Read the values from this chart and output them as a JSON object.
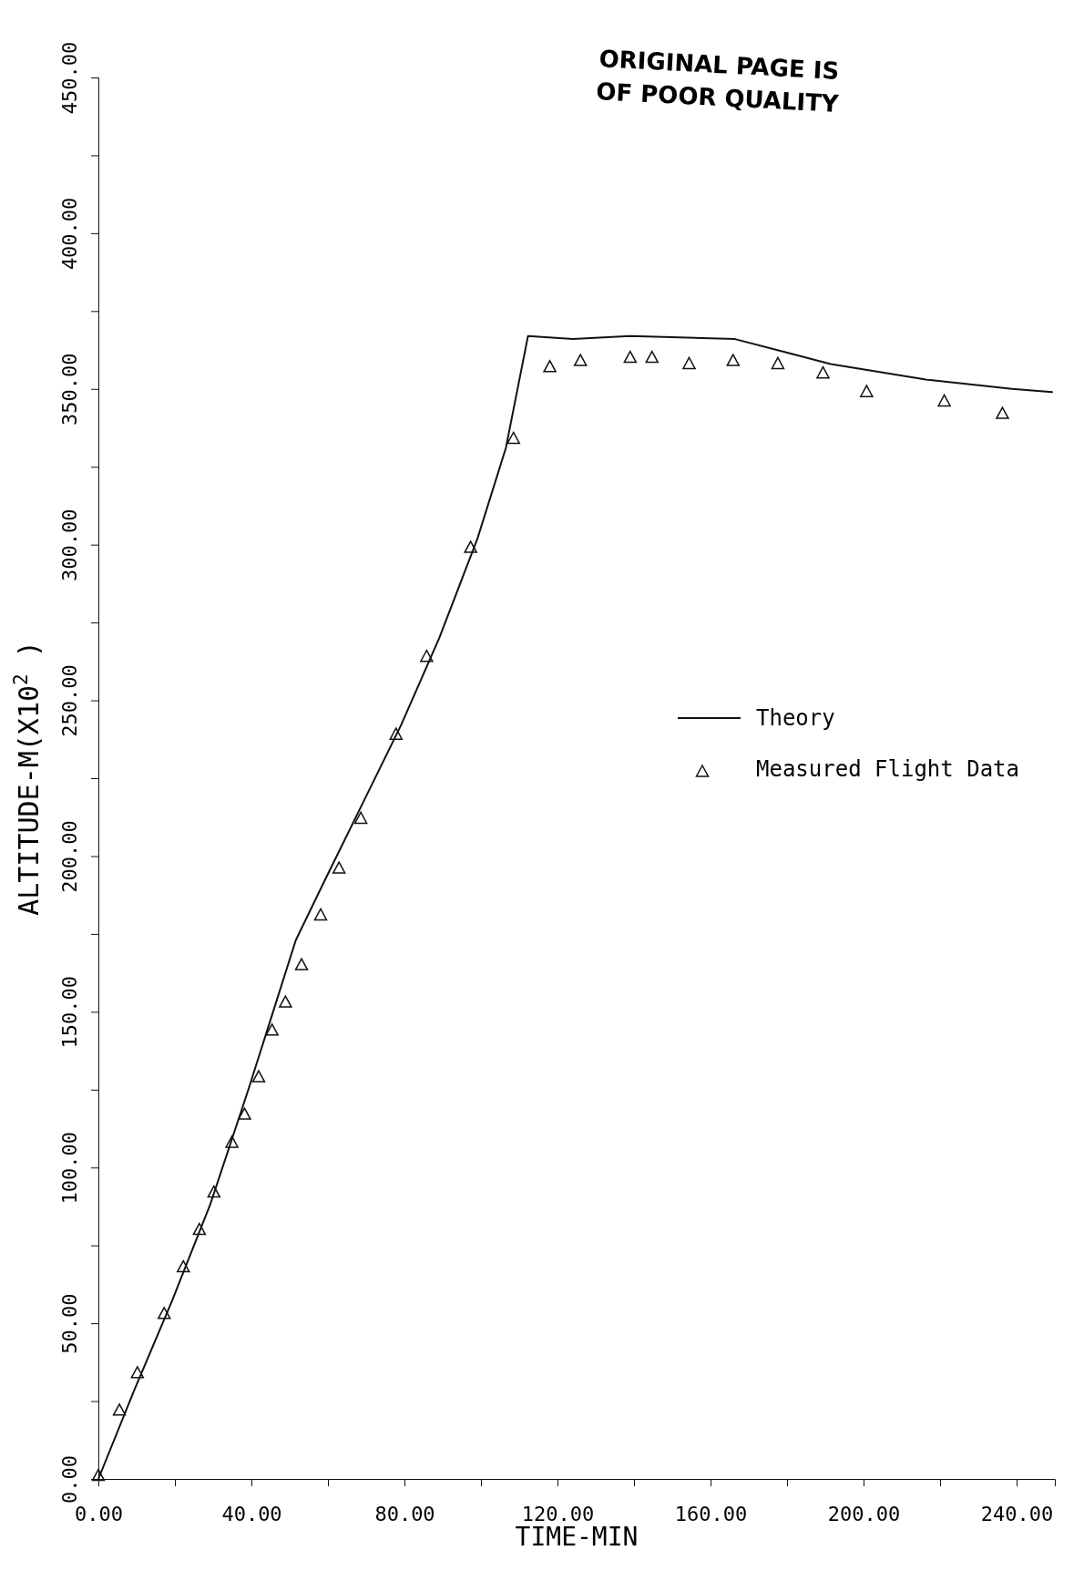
{
  "chart_data": {
    "type": "line",
    "xlabel": "TIME-MIN",
    "ylabel": "ALTITUDE-M(X10$^{2}$ )",
    "annotations": [
      "ORIGINAL PAGE IS OF POOR QUALITY"
    ],
    "xlim": [
      0,
      250
    ],
    "ylim": [
      0,
      450
    ],
    "xticks": [
      {
        "value": 0,
        "label": "0.00"
      },
      {
        "value": 20,
        "label": null
      },
      {
        "value": 40,
        "label": "40.00"
      },
      {
        "value": 60,
        "label": null
      },
      {
        "value": 80,
        "label": "80.00"
      },
      {
        "value": 100,
        "label": null
      },
      {
        "value": 120,
        "label": "120.00"
      },
      {
        "value": 140,
        "label": null
      },
      {
        "value": 160,
        "label": "160.00"
      },
      {
        "value": 180,
        "label": null
      },
      {
        "value": 200,
        "label": "200.00"
      },
      {
        "value": 220,
        "label": null
      },
      {
        "value": 240,
        "label": "240.00"
      }
    ],
    "yticks": [
      {
        "value": 0,
        "label": "0.00"
      },
      {
        "value": 25,
        "label": null
      },
      {
        "value": 50,
        "label": "50.00"
      },
      {
        "value": 75,
        "label": null
      },
      {
        "value": 100,
        "label": "100.00"
      },
      {
        "value": 125,
        "label": null
      },
      {
        "value": 150,
        "label": "150.00"
      },
      {
        "value": 175,
        "label": null
      },
      {
        "value": 200,
        "label": "200.00"
      },
      {
        "value": 225,
        "label": null
      },
      {
        "value": 250,
        "label": "250.00"
      },
      {
        "value": 275,
        "label": null
      },
      {
        "value": 300,
        "label": "300.00"
      },
      {
        "value": 325,
        "label": null
      },
      {
        "value": 350,
        "label": "350.00"
      },
      {
        "value": 375,
        "label": null
      },
      {
        "value": 400,
        "label": "400.00"
      },
      {
        "value": 425,
        "label": null
      },
      {
        "value": 450,
        "label": "450.00"
      }
    ],
    "grid": false,
    "legend": "right",
    "series": [
      {
        "name": "Theory",
        "type": "line",
        "color": "#111111",
        "marker": "none",
        "line_style": "solid",
        "x": [
          0,
          9.2,
          19.2,
          29.2,
          39.2,
          46.7,
          51.6,
          59.1,
          69.1,
          79.1,
          89.1,
          99.1,
          106.5,
          112.3,
          124,
          139,
          166.4,
          178.9,
          191.4,
          216.3,
          238.8,
          249.3
        ],
        "values": [
          0,
          28,
          57,
          88,
          125,
          154,
          173,
          192,
          217,
          242,
          270,
          302,
          331,
          367,
          366,
          367,
          366,
          362,
          358,
          353,
          350,
          349
        ]
      },
      {
        "name": "Measured Flight Data",
        "type": "scatter",
        "color": "#111111",
        "marker": "triangle",
        "x": [
          0,
          5.5,
          10.2,
          17.2,
          22.2,
          26.4,
          30.2,
          34.9,
          38.2,
          41.9,
          45.4,
          48.9,
          53.1,
          58.1,
          62.9,
          68.6,
          77.8,
          85.8,
          97.3,
          108.5,
          118,
          126,
          139,
          144.7,
          154.4,
          165.9,
          177.6,
          189.4,
          200.8,
          221.1,
          236.3
        ],
        "values": [
          1,
          22,
          34,
          53,
          68,
          80,
          92,
          108,
          117,
          129,
          144,
          153,
          165,
          181,
          196,
          212,
          239,
          264,
          299,
          334,
          357,
          359,
          360,
          360,
          358,
          359,
          358,
          355,
          349,
          346,
          342
        ]
      }
    ]
  }
}
